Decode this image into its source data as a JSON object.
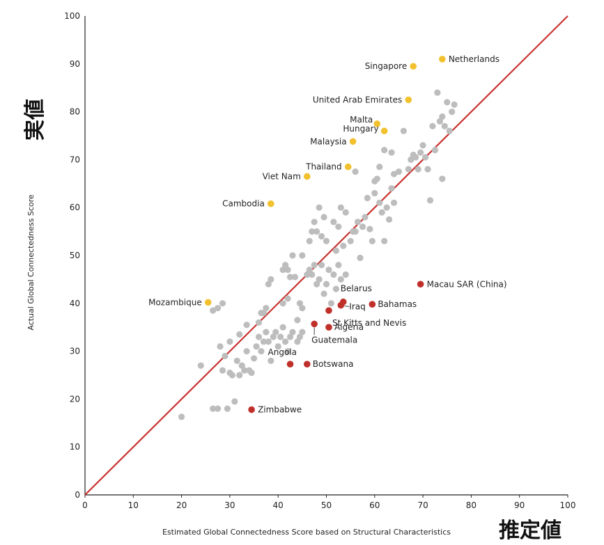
{
  "chart_data": {
    "type": "scatter",
    "xlabel": "Estimated Global Connectedness Score based on Structural Characteristics",
    "ylabel": "Actual Global Connectedness Score",
    "xlabel_jp": "推定値",
    "ylabel_jp": "実値",
    "xlim": [
      0,
      100
    ],
    "ylim": [
      0,
      100
    ],
    "xticks": [
      0,
      10,
      20,
      30,
      40,
      50,
      60,
      70,
      80,
      90,
      100
    ],
    "yticks": [
      0,
      10,
      20,
      30,
      40,
      50,
      60,
      70,
      80,
      90,
      100
    ],
    "grid": false,
    "reference_line": {
      "from": [
        0,
        0
      ],
      "to": [
        100,
        100
      ],
      "color": "#c8322f"
    },
    "colors": {
      "other": "#bdbdbd",
      "above": "#f2c12e",
      "below": "#c0302a",
      "axis": "#222222"
    },
    "labeled_points": [
      {
        "name": "Netherlands",
        "x": 74.0,
        "y": 91.0,
        "group": "above"
      },
      {
        "name": "Singapore",
        "x": 68.0,
        "y": 89.5,
        "group": "above"
      },
      {
        "name": "United Arab Emirates",
        "x": 67.0,
        "y": 82.5,
        "group": "above"
      },
      {
        "name": "Malta",
        "x": 60.5,
        "y": 77.5,
        "group": "above"
      },
      {
        "name": "Hungary",
        "x": 62.0,
        "y": 76.0,
        "group": "above"
      },
      {
        "name": "Malaysia",
        "x": 55.5,
        "y": 73.8,
        "group": "above"
      },
      {
        "name": "Thailand",
        "x": 54.5,
        "y": 68.5,
        "group": "above"
      },
      {
        "name": "Viet Nam",
        "x": 46.0,
        "y": 66.5,
        "group": "above"
      },
      {
        "name": "Cambodia",
        "x": 38.5,
        "y": 60.8,
        "group": "above"
      },
      {
        "name": "Mozambique",
        "x": 25.5,
        "y": 40.2,
        "group": "above"
      },
      {
        "name": "Macau SAR (China)",
        "x": 69.5,
        "y": 44.0,
        "group": "below"
      },
      {
        "name": "Belarus",
        "x": 53.5,
        "y": 40.3,
        "group": "below"
      },
      {
        "name": "Iraq",
        "x": 53.0,
        "y": 39.6,
        "group": "below"
      },
      {
        "name": "Bahamas",
        "x": 59.5,
        "y": 39.8,
        "group": "below"
      },
      {
        "name": "St Kitts and Nevis",
        "x": 50.5,
        "y": 38.5,
        "group": "below"
      },
      {
        "name": "Algeria",
        "x": 50.5,
        "y": 35.0,
        "group": "below"
      },
      {
        "name": "Guatemala",
        "x": 47.5,
        "y": 35.7,
        "group": "below"
      },
      {
        "name": "Angola",
        "x": 42.5,
        "y": 27.3,
        "group": "below"
      },
      {
        "name": "Botswana",
        "x": 46.0,
        "y": 27.3,
        "group": "below"
      },
      {
        "name": "Zimbabwe",
        "x": 34.5,
        "y": 17.8,
        "group": "below"
      }
    ],
    "other_points": [
      [
        20,
        16.3
      ],
      [
        24,
        27
      ],
      [
        26.5,
        18
      ],
      [
        27.5,
        18
      ],
      [
        28,
        31
      ],
      [
        29,
        29
      ],
      [
        29.5,
        18
      ],
      [
        30,
        25.5
      ],
      [
        30.5,
        25
      ],
      [
        28.5,
        26
      ],
      [
        31,
        19.5
      ],
      [
        31.5,
        28
      ],
      [
        32,
        25
      ],
      [
        32.5,
        27
      ],
      [
        33,
        26
      ],
      [
        33.5,
        30
      ],
      [
        34,
        26
      ],
      [
        34.5,
        25.5
      ],
      [
        35,
        28.5
      ],
      [
        35.5,
        31
      ],
      [
        36,
        33
      ],
      [
        36.5,
        30
      ],
      [
        37,
        32
      ],
      [
        37.5,
        34
      ],
      [
        38,
        32
      ],
      [
        38.5,
        28
      ],
      [
        39,
        33
      ],
      [
        39.5,
        34
      ],
      [
        40,
        31
      ],
      [
        40.5,
        33
      ],
      [
        41,
        35
      ],
      [
        41.5,
        32
      ],
      [
        42,
        30
      ],
      [
        42.5,
        33
      ],
      [
        43,
        34
      ],
      [
        44,
        32
      ],
      [
        44.5,
        33
      ],
      [
        45,
        34
      ],
      [
        36,
        36
      ],
      [
        36.5,
        38
      ],
      [
        37,
        38
      ],
      [
        37.5,
        39
      ],
      [
        38,
        44
      ],
      [
        38.5,
        45
      ],
      [
        41,
        40
      ],
      [
        42,
        41
      ],
      [
        42.5,
        45.5
      ],
      [
        43.5,
        45.5
      ],
      [
        44.5,
        40
      ],
      [
        45,
        39
      ],
      [
        41,
        47
      ],
      [
        41.5,
        48
      ],
      [
        42,
        47
      ],
      [
        43,
        50
      ],
      [
        45,
        50
      ],
      [
        46,
        46
      ],
      [
        46.5,
        47
      ],
      [
        47,
        46
      ],
      [
        47.5,
        48
      ],
      [
        48,
        44
      ],
      [
        48.5,
        45
      ],
      [
        49,
        48
      ],
      [
        49.5,
        42
      ],
      [
        50,
        44
      ],
      [
        50.5,
        47
      ],
      [
        51,
        40
      ],
      [
        51.5,
        46
      ],
      [
        52,
        43
      ],
      [
        52.5,
        48
      ],
      [
        53,
        45
      ],
      [
        46.5,
        53
      ],
      [
        47,
        55
      ],
      [
        47.5,
        57
      ],
      [
        48,
        55
      ],
      [
        48.5,
        60
      ],
      [
        49,
        54
      ],
      [
        49.5,
        58
      ],
      [
        50,
        53
      ],
      [
        51.5,
        57
      ],
      [
        52,
        51
      ],
      [
        52.5,
        56
      ],
      [
        53,
        60
      ],
      [
        53.5,
        52
      ],
      [
        54,
        59
      ],
      [
        55,
        53
      ],
      [
        55.5,
        55
      ],
      [
        56,
        55
      ],
      [
        56.5,
        57
      ],
      [
        57,
        49.5
      ],
      [
        57.5,
        56
      ],
      [
        58,
        58
      ],
      [
        58.5,
        62
      ],
      [
        59,
        55.5
      ],
      [
        59.5,
        53
      ],
      [
        60,
        63
      ],
      [
        60.5,
        66
      ],
      [
        61,
        61
      ],
      [
        61.5,
        59
      ],
      [
        62,
        53
      ],
      [
        62.5,
        60
      ],
      [
        63,
        57.5
      ],
      [
        63.5,
        64
      ],
      [
        64,
        67
      ],
      [
        61,
        68.5
      ],
      [
        62,
        72
      ],
      [
        63.5,
        71.5
      ],
      [
        65,
        67.5
      ],
      [
        66,
        76
      ],
      [
        67,
        68
      ],
      [
        67.5,
        70
      ],
      [
        68,
        71
      ],
      [
        68.5,
        70.5
      ],
      [
        69,
        68
      ],
      [
        69.5,
        71.5
      ],
      [
        70,
        73
      ],
      [
        70.5,
        70.5
      ],
      [
        71,
        68
      ],
      [
        71.5,
        61.5
      ],
      [
        72,
        77
      ],
      [
        72.5,
        72
      ],
      [
        73,
        84
      ],
      [
        73.5,
        78
      ],
      [
        74,
        79
      ],
      [
        74.5,
        77
      ],
      [
        75,
        82
      ],
      [
        75.5,
        76
      ],
      [
        76,
        80
      ],
      [
        76.5,
        81.5
      ],
      [
        74,
        66
      ],
      [
        56,
        67.5
      ],
      [
        60,
        65.5
      ],
      [
        64,
        61
      ],
      [
        54,
        46
      ],
      [
        44,
        36.5
      ],
      [
        28.5,
        40
      ],
      [
        27.5,
        39
      ],
      [
        26.5,
        38.5
      ],
      [
        30,
        32
      ],
      [
        32,
        33.5
      ],
      [
        33.5,
        35.5
      ]
    ]
  }
}
